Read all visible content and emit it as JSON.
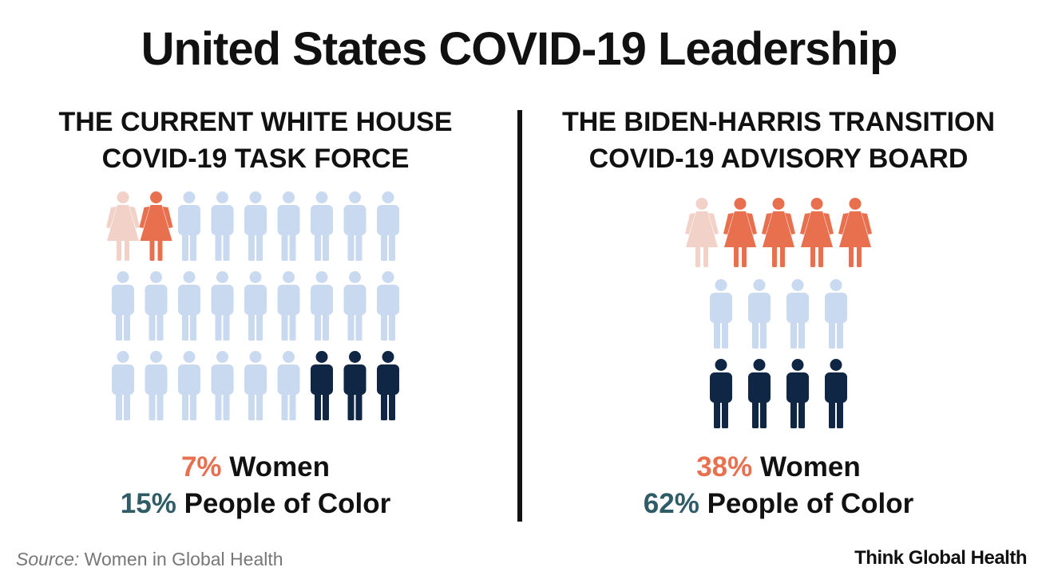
{
  "title": "United States COVID-19 Leadership",
  "colors": {
    "woman_light": "#f2d2c8",
    "woman": "#e8704f",
    "man_light": "#c9daf0",
    "man_dark": "#0f2744",
    "women_pct_text": "#e8704f",
    "poc_pct_text": "#2f5c66"
  },
  "chart_data": [
    {
      "type": "pictogram",
      "title": "THE CURRENT WHITE HOUSE COVID-19 TASK FORCE",
      "total_members": 27,
      "rows": [
        [
          "woman-light",
          "woman",
          "man-light",
          "man-light",
          "man-light",
          "man-light",
          "man-light",
          "man-light",
          "man-light"
        ],
        [
          "man-light",
          "man-light",
          "man-light",
          "man-light",
          "man-light",
          "man-light",
          "man-light",
          "man-light",
          "man-light"
        ],
        [
          "man-light",
          "man-light",
          "man-light",
          "man-light",
          "man-light",
          "man-light",
          "man-dark",
          "man-dark",
          "man-dark"
        ]
      ],
      "women_pct": "7%",
      "women_label": "Women",
      "poc_pct": "15%",
      "poc_label": "People of Color"
    },
    {
      "type": "pictogram",
      "title": "THE BIDEN-HARRIS TRANSITION COVID-19 ADVISORY BOARD",
      "total_members": 13,
      "rows": [
        [
          "woman-light",
          "woman",
          "woman",
          "woman",
          "woman"
        ],
        [
          "man-light",
          "man-light",
          "man-light",
          "man-light"
        ],
        [
          "man-dark",
          "man-dark",
          "man-dark",
          "man-dark"
        ]
      ],
      "women_pct": "38%",
      "women_label": "Women",
      "poc_pct": "62%",
      "poc_label": "People of Color"
    }
  ],
  "source": {
    "label": "Source:",
    "text": "Women in Global Health"
  },
  "brand": "Think Global Health"
}
